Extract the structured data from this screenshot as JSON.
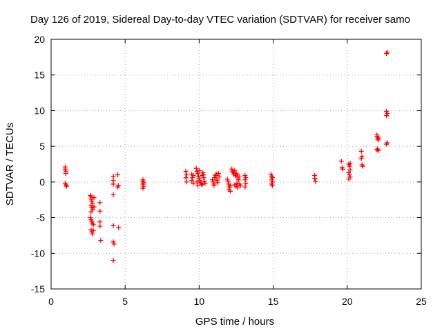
{
  "chart_data": {
    "type": "scatter",
    "title": "Day 126 of 2019, Sidereal Day-to-day VTEC variation (SDTVAR) for receiver samo",
    "xlabel": "GPS time / hours",
    "ylabel": "SDTVAR / TECUs",
    "xlim": [
      0,
      25
    ],
    "ylim": [
      -15,
      20
    ],
    "xticks": [
      "0",
      "5",
      "10",
      "15",
      "20",
      "25"
    ],
    "yticks": [
      "-15",
      "-10",
      "-5",
      "0",
      "5",
      "10",
      "15",
      "20"
    ],
    "grid": true,
    "marker": "+",
    "color": "#ff0000",
    "series": [
      {
        "name": "SDTVAR",
        "points": [
          [
            0.95,
            2.1
          ],
          [
            0.95,
            1.8
          ],
          [
            1.0,
            1.5
          ],
          [
            1.0,
            1.2
          ],
          [
            0.95,
            -0.2
          ],
          [
            1.0,
            -0.4
          ],
          [
            1.05,
            -0.6
          ],
          [
            2.65,
            -1.9
          ],
          [
            2.7,
            -2.1
          ],
          [
            2.7,
            -2.4
          ],
          [
            2.75,
            -2.7
          ],
          [
            2.8,
            -3.0
          ],
          [
            2.7,
            -3.3
          ],
          [
            2.75,
            -3.6
          ],
          [
            2.8,
            -3.9
          ],
          [
            2.7,
            -4.2
          ],
          [
            2.65,
            -5.0
          ],
          [
            2.7,
            -5.3
          ],
          [
            2.75,
            -5.6
          ],
          [
            2.8,
            -5.8
          ],
          [
            2.85,
            -6.0
          ],
          [
            2.7,
            -6.7
          ],
          [
            2.75,
            -7.0
          ],
          [
            2.8,
            -7.3
          ],
          [
            2.85,
            -6.8
          ],
          [
            2.9,
            -2.2
          ],
          [
            2.9,
            -3.5
          ],
          [
            3.3,
            -2.9
          ],
          [
            3.3,
            -4.1
          ],
          [
            3.3,
            -5.6
          ],
          [
            3.3,
            -6.2
          ],
          [
            3.35,
            -8.2
          ],
          [
            4.2,
            0.8
          ],
          [
            4.2,
            0.2
          ],
          [
            4.2,
            -0.3
          ],
          [
            4.2,
            -1.8
          ],
          [
            4.2,
            -6.1
          ],
          [
            4.2,
            -8.4
          ],
          [
            4.25,
            -8.7
          ],
          [
            4.2,
            -11.0
          ],
          [
            4.5,
            1.0
          ],
          [
            4.55,
            -0.5
          ],
          [
            4.5,
            -0.7
          ],
          [
            4.55,
            -6.4
          ],
          [
            6.2,
            0.3
          ],
          [
            6.2,
            0.1
          ],
          [
            6.25,
            -0.1
          ],
          [
            6.2,
            -0.3
          ],
          [
            6.25,
            -0.6
          ],
          [
            6.2,
            -0.9
          ],
          [
            9.1,
            1.5
          ],
          [
            9.15,
            1.0
          ],
          [
            9.1,
            0.6
          ],
          [
            9.15,
            0.0
          ],
          [
            9.5,
            1.1
          ],
          [
            9.55,
            0.6
          ],
          [
            9.5,
            0.2
          ],
          [
            9.6,
            -0.2
          ],
          [
            9.6,
            0.9
          ],
          [
            9.8,
            1.9
          ],
          [
            9.85,
            1.5
          ],
          [
            9.9,
            1.2
          ],
          [
            9.95,
            0.8
          ],
          [
            10.0,
            0.5
          ],
          [
            10.05,
            0.2
          ],
          [
            10.1,
            -0.1
          ],
          [
            10.15,
            -0.3
          ],
          [
            10.2,
            0.9
          ],
          [
            10.25,
            1.3
          ],
          [
            10.3,
            0.6
          ],
          [
            10.35,
            0.1
          ],
          [
            10.4,
            -0.2
          ],
          [
            9.9,
            -0.5
          ],
          [
            10.0,
            1.6
          ],
          [
            10.2,
            -0.4
          ],
          [
            10.3,
            1.0
          ],
          [
            9.85,
            0.0
          ],
          [
            10.9,
            0.3
          ],
          [
            10.95,
            0.0
          ],
          [
            11.0,
            -0.3
          ],
          [
            11.05,
            0.6
          ],
          [
            11.1,
            0.9
          ],
          [
            11.15,
            1.1
          ],
          [
            11.2,
            0.4
          ],
          [
            11.25,
            -0.1
          ],
          [
            11.3,
            1.2
          ],
          [
            11.35,
            0.7
          ],
          [
            11.0,
            -0.5
          ],
          [
            11.2,
            0.2
          ],
          [
            11.9,
            0.4
          ],
          [
            11.95,
            0.1
          ],
          [
            12.0,
            -0.3
          ],
          [
            12.05,
            -0.7
          ],
          [
            12.0,
            -1.1
          ],
          [
            12.1,
            -1.3
          ],
          [
            12.1,
            -0.5
          ],
          [
            12.2,
            1.8
          ],
          [
            12.25,
            1.5
          ],
          [
            12.3,
            1.3
          ],
          [
            12.35,
            1.1
          ],
          [
            12.4,
            1.6
          ],
          [
            12.45,
            0.9
          ],
          [
            12.5,
            1.2
          ],
          [
            12.55,
            0.7
          ],
          [
            12.6,
            1.0
          ],
          [
            12.65,
            0.3
          ],
          [
            12.7,
            0.7
          ],
          [
            12.4,
            -0.4
          ],
          [
            12.5,
            -0.6
          ],
          [
            12.55,
            -0.2
          ],
          [
            12.6,
            -0.8
          ],
          [
            12.7,
            -0.3
          ],
          [
            12.8,
            -0.5
          ],
          [
            13.1,
            0.9
          ],
          [
            13.15,
            0.6
          ],
          [
            13.1,
            0.3
          ],
          [
            13.15,
            -0.2
          ],
          [
            13.1,
            -0.7
          ],
          [
            14.85,
            1.1
          ],
          [
            14.9,
            0.8
          ],
          [
            14.95,
            0.6
          ],
          [
            14.9,
            0.3
          ],
          [
            14.95,
            0.0
          ],
          [
            14.9,
            -0.3
          ],
          [
            14.95,
            -0.5
          ],
          [
            17.8,
            0.9
          ],
          [
            17.8,
            0.5
          ],
          [
            17.85,
            0.1
          ],
          [
            19.6,
            2.9
          ],
          [
            19.65,
            2.0
          ],
          [
            19.7,
            1.8
          ],
          [
            20.1,
            2.5
          ],
          [
            20.15,
            2.2
          ],
          [
            20.2,
            1.7
          ],
          [
            20.1,
            1.3
          ],
          [
            20.15,
            1.0
          ],
          [
            20.2,
            0.7
          ],
          [
            20.1,
            0.4
          ],
          [
            20.2,
            2.6
          ],
          [
            20.95,
            4.3
          ],
          [
            21.0,
            3.6
          ],
          [
            20.95,
            3.3
          ],
          [
            21.0,
            2.4
          ],
          [
            21.05,
            2.2
          ],
          [
            22.0,
            6.4
          ],
          [
            22.05,
            6.1
          ],
          [
            22.1,
            5.9
          ],
          [
            22.0,
            6.6
          ],
          [
            22.1,
            6.2
          ],
          [
            22.05,
            4.6
          ],
          [
            22.1,
            4.4
          ],
          [
            22.0,
            4.5
          ],
          [
            22.65,
            18.0
          ],
          [
            22.7,
            18.2
          ],
          [
            22.65,
            9.9
          ],
          [
            22.7,
            9.6
          ],
          [
            22.65,
            9.3
          ],
          [
            22.7,
            5.5
          ],
          [
            22.65,
            5.3
          ]
        ]
      }
    ]
  }
}
